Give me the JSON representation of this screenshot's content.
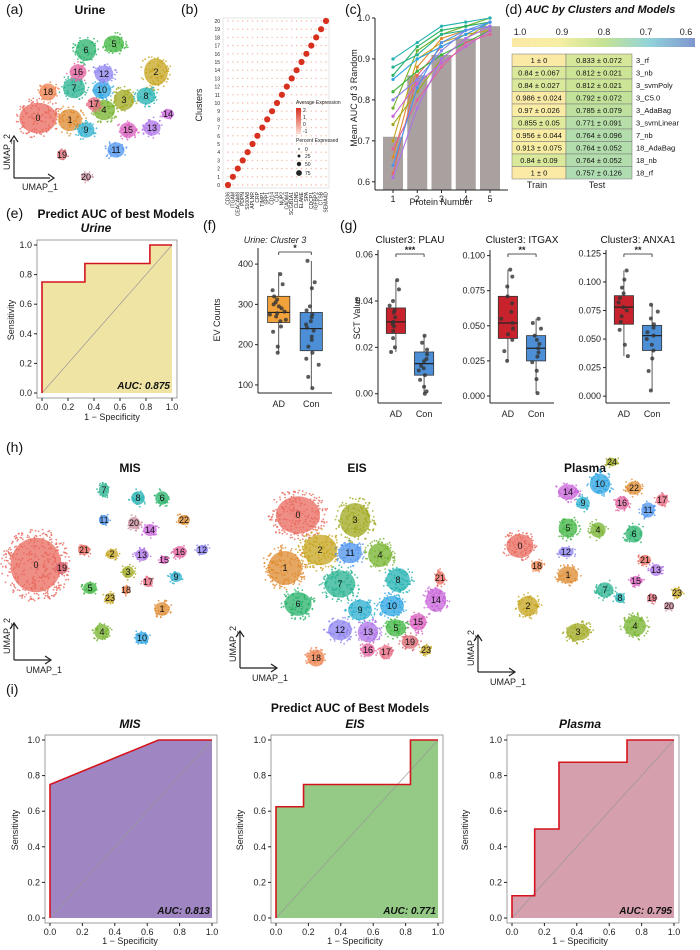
{
  "panels": {
    "a": {
      "label": "(a)",
      "title": "Urine",
      "xlab": "UMAP_1",
      "ylab": "UMAP_2",
      "clusters": [
        {
          "id": "0",
          "color": "#e8685c"
        },
        {
          "id": "1",
          "color": "#de8a2d"
        },
        {
          "id": "2",
          "color": "#c5a41c"
        },
        {
          "id": "3",
          "color": "#9fa81d"
        },
        {
          "id": "4",
          "color": "#74b12b"
        },
        {
          "id": "5",
          "color": "#3cb43d"
        },
        {
          "id": "6",
          "color": "#27b169"
        },
        {
          "id": "7",
          "color": "#25b28f"
        },
        {
          "id": "8",
          "color": "#22b2b0"
        },
        {
          "id": "9",
          "color": "#28aecd"
        },
        {
          "id": "10",
          "color": "#2aa4e3"
        },
        {
          "id": "11",
          "color": "#4d93ef"
        },
        {
          "id": "12",
          "color": "#8c82f0"
        },
        {
          "id": "13",
          "color": "#ad72e8"
        },
        {
          "id": "14",
          "color": "#c762d8"
        },
        {
          "id": "15",
          "color": "#d95bbd"
        },
        {
          "id": "16",
          "color": "#e3619f"
        },
        {
          "id": "17",
          "color": "#e86a82"
        },
        {
          "id": "18",
          "color": "#ef7f4a"
        },
        {
          "id": "19",
          "color": "#d86570"
        },
        {
          "id": "20",
          "color": "#c98b9b"
        }
      ]
    },
    "b": {
      "label": "(b)",
      "ylab": "Clusters",
      "cluster_ticks": [
        "0",
        "1",
        "2",
        "3",
        "4",
        "5",
        "6",
        "7",
        "8",
        "9",
        "10",
        "11",
        "12",
        "13",
        "14",
        "15",
        "16",
        "17",
        "18",
        "19",
        "20"
      ],
      "genes": [
        "CD36",
        "ITGAM",
        "CEACAM8",
        "PDPN",
        "S100A8",
        "APLNR",
        "CRP",
        "TIMP1",
        "SPP1",
        "CD14",
        "CD4",
        "NUP2",
        "CADM4",
        "SCGB1A1",
        "CLDN5",
        "ELANE",
        "SPA",
        "CDCP1",
        "IGFBP2",
        "CTSB",
        "SEMA4D"
      ],
      "legend1_title": "Average Expression",
      "legend1_ticks": [
        "2",
        "1",
        "0",
        "-1"
      ],
      "legend2_title": "Percent Expressed",
      "legend2_ticks": [
        "0",
        "25",
        "50",
        "75"
      ]
    },
    "c": {
      "label": "(c)",
      "ylab": "Mean AUC of 3 Random",
      "xlab": "Protein Number"
    },
    "d": {
      "label": "(d)",
      "title": "AUC by Clusters and Models",
      "scale_ticks": [
        "1.0",
        "0.9",
        "0.8",
        "0.7",
        "0.6"
      ],
      "col_train": "Train",
      "col_test": "Test",
      "rows": [
        {
          "train": "1 ± 0",
          "test": "0.833 ± 0.072",
          "model": "3_rf"
        },
        {
          "train": "0.84 ± 0.067",
          "test": "0.812 ± 0.021",
          "model": "3_nb"
        },
        {
          "train": "0.84 ± 0.027",
          "test": "0.812 ± 0.021",
          "model": "3_svmPoly"
        },
        {
          "train": "0.986 ± 0.024",
          "test": "0.792 ± 0.072",
          "model": "3_C5.0"
        },
        {
          "train": "0.97 ± 0.026",
          "test": "0.785 ± 0.079",
          "model": "3_AdaBag"
        },
        {
          "train": "0.855 ± 0.05",
          "test": "0.771 ± 0.091",
          "model": "3_svmLinear"
        },
        {
          "train": "0.956 ± 0.044",
          "test": "0.764 ± 0.096",
          "model": "7_nb"
        },
        {
          "train": "0.913 ± 0.075",
          "test": "0.764 ± 0.052",
          "model": "18_AdaBag"
        },
        {
          "train": "0.84 ± 0.09",
          "test": "0.764 ± 0.052",
          "model": "18_nb"
        },
        {
          "train": "1 ± 0",
          "test": "0.757 ± 0.126",
          "model": "18_rf"
        }
      ]
    },
    "e": {
      "label": "(e)",
      "title": "Predict AUC of best Models",
      "subtitle": "Urine",
      "auc": "AUC: 0.875",
      "xlab": "1 − Specificity",
      "ylab": "Sensitivity"
    },
    "f": {
      "label": "(f)",
      "title": "Urine: Cluster 3",
      "ylab": "EV Counts",
      "sig": "*"
    },
    "g": {
      "label": "(g)",
      "ylab": "SCT Value",
      "plots": [
        {
          "title": "Cluster3: PLAU",
          "sig": "***"
        },
        {
          "title": "Cluster3: ITGAX",
          "sig": "**"
        },
        {
          "title": "Cluster3: ANXA1",
          "sig": "**"
        }
      ]
    },
    "h": {
      "label": "(h)",
      "xlab": "UMAP_1",
      "ylab": "UMAP_2",
      "plots": [
        {
          "title": "MIS"
        },
        {
          "title": "EIS"
        },
        {
          "title": "Plasma"
        }
      ]
    },
    "i": {
      "label": "(i)",
      "title": "Predict AUC of Best Models",
      "plots": [
        {
          "title": "MIS",
          "auc": "AUC: 0.813"
        },
        {
          "title": "EIS",
          "auc": "AUC: 0.771"
        },
        {
          "title": "Plasma",
          "auc": "AUC: 0.795"
        }
      ],
      "xlab": "1 − Specificity",
      "ylab": "Sensitivity"
    }
  },
  "chart_data": [
    {
      "type": "scatter",
      "id": "b",
      "title": "",
      "xlabel": "",
      "ylabel": "Clusters",
      "x": [
        "CD36",
        "ITGAM",
        "CEACAM8",
        "PDPN",
        "S100A8",
        "APLNR",
        "CRP",
        "TIMP1",
        "SPP1",
        "CD14",
        "CD4",
        "NUP2",
        "CADM4",
        "SCGB1A1",
        "CLDN5",
        "ELANE",
        "SPA",
        "CDCP1",
        "IGFBP2",
        "CTSB",
        "SEMA4D"
      ],
      "y": [
        "0",
        "1",
        "2",
        "3",
        "4",
        "5",
        "6",
        "7",
        "8",
        "9",
        "10",
        "11",
        "12",
        "13",
        "14",
        "15",
        "16",
        "17",
        "18",
        "19",
        "20"
      ],
      "highlight": "diagonal (each cluster's marker gene)"
    },
    {
      "type": "bar",
      "id": "c",
      "xlabel": "Protein Number",
      "ylabel": "Mean AUC of 3 Random",
      "categories": [
        "1",
        "2",
        "3",
        "4",
        "5"
      ],
      "values": [
        0.71,
        0.86,
        0.91,
        0.95,
        0.98
      ],
      "ylim": [
        0.58,
        1.0
      ],
      "yticks": [
        0.6,
        0.7,
        0.8,
        0.9,
        1.0
      ],
      "series": [
        {
          "name": "s1",
          "color": "#e8685c",
          "values": [
            0.62,
            0.86,
            0.93,
            0.96,
            0.99
          ]
        },
        {
          "name": "s2",
          "color": "#de8a2d",
          "values": [
            0.66,
            0.88,
            0.95,
            0.97,
            0.98
          ]
        },
        {
          "name": "s3",
          "color": "#c5a41c",
          "values": [
            0.7,
            0.9,
            0.94,
            0.96,
            0.97
          ]
        },
        {
          "name": "s4",
          "color": "#9fa81d",
          "values": [
            0.74,
            0.82,
            0.9,
            0.95,
            0.99
          ]
        },
        {
          "name": "s5",
          "color": "#74b12b",
          "values": [
            0.78,
            0.92,
            0.96,
            0.98,
            1.0
          ]
        },
        {
          "name": "s6",
          "color": "#3cb43d",
          "values": [
            0.82,
            0.87,
            0.91,
            0.94,
            0.97
          ]
        },
        {
          "name": "s7",
          "color": "#27b169",
          "values": [
            0.86,
            0.93,
            0.97,
            0.98,
            0.99
          ]
        },
        {
          "name": "s8",
          "color": "#25b28f",
          "values": [
            0.88,
            0.91,
            0.96,
            0.97,
            0.98
          ]
        },
        {
          "name": "s9",
          "color": "#22b2b0",
          "values": [
            0.9,
            0.94,
            0.98,
            0.99,
            1.0
          ]
        },
        {
          "name": "s10",
          "color": "#2aa4e3",
          "values": [
            0.85,
            0.9,
            0.93,
            0.96,
            0.99
          ]
        },
        {
          "name": "s11",
          "color": "#8c82f0",
          "values": [
            0.8,
            0.85,
            0.92,
            0.97,
            0.98
          ]
        },
        {
          "name": "s12",
          "color": "#c762d8",
          "values": [
            0.76,
            0.84,
            0.89,
            0.93,
            0.97
          ]
        },
        {
          "name": "s13",
          "color": "#e3619f",
          "values": [
            0.68,
            0.8,
            0.88,
            0.94,
            0.96
          ]
        },
        {
          "name": "s14",
          "color": "#4d93ef",
          "values": [
            0.64,
            0.83,
            0.94,
            0.97,
            0.99
          ]
        },
        {
          "name": "s15",
          "color": "#ad72e8",
          "values": [
            0.61,
            0.78,
            0.9,
            0.95,
            0.98
          ]
        }
      ]
    },
    {
      "type": "line",
      "id": "e",
      "title": "Predict AUC of best Models",
      "xlabel": "1 − Specificity",
      "ylabel": "Sensitivity",
      "x": [
        0,
        0,
        0.33,
        0.33,
        0.83,
        0.83,
        1
      ],
      "y": [
        0,
        0.75,
        0.75,
        0.875,
        0.875,
        1,
        1
      ],
      "xlim": [
        0,
        1
      ],
      "ylim": [
        0,
        1
      ],
      "ticks": [
        0.0,
        0.2,
        0.4,
        0.6,
        0.8,
        1.0
      ],
      "fill": "#efe39f",
      "auc": 0.875
    },
    {
      "type": "box",
      "id": "f",
      "title": "Urine: Cluster 3",
      "ylabel": "EV Counts",
      "categories": [
        "AD",
        "Con"
      ],
      "ylim": [
        80,
        440
      ],
      "yticks": [
        100,
        200,
        300,
        400
      ],
      "boxes": [
        {
          "name": "AD",
          "color": "#f2a23a",
          "min": 180,
          "q1": 255,
          "median": 280,
          "q3": 320,
          "max": 380,
          "points": [
            180,
            195,
            232,
            245,
            258,
            262,
            270,
            275,
            278,
            282,
            290,
            295,
            300,
            305,
            312,
            320,
            335,
            350,
            375
          ]
        },
        {
          "name": "Con",
          "color": "#4c8fd6",
          "min": 92,
          "q1": 185,
          "median": 240,
          "q3": 280,
          "max": 408,
          "points": [
            92,
            120,
            150,
            165,
            180,
            195,
            212,
            220,
            235,
            242,
            250,
            258,
            268,
            275,
            285,
            295,
            340,
            355,
            408
          ]
        }
      ]
    },
    {
      "type": "box",
      "id": "g1",
      "title": "Cluster3: PLAU",
      "ylabel": "SCT Value",
      "categories": [
        "AD",
        "Con"
      ],
      "ylim": [
        -0.004,
        0.062
      ],
      "yticks": [
        0.0,
        0.02,
        0.04,
        0.06
      ],
      "boxes": [
        {
          "name": "AD",
          "color": "#c8232c",
          "min": 0.018,
          "q1": 0.026,
          "median": 0.031,
          "q3": 0.037,
          "max": 0.049,
          "points": [
            0.018,
            0.02,
            0.024,
            0.027,
            0.029,
            0.03,
            0.031,
            0.033,
            0.035,
            0.036,
            0.038,
            0.04,
            0.045,
            0.049
          ]
        },
        {
          "name": "Con",
          "color": "#4c8fd6",
          "min": 0.0,
          "q1": 0.008,
          "median": 0.013,
          "q3": 0.018,
          "max": 0.025,
          "points": [
            0.0,
            0.001,
            0.003,
            0.006,
            0.008,
            0.01,
            0.011,
            0.012,
            0.014,
            0.015,
            0.017,
            0.019,
            0.022,
            0.025
          ]
        }
      ]
    },
    {
      "type": "box",
      "id": "g2",
      "title": "Cluster3: ITGAX",
      "ylabel": "",
      "categories": [
        "AD",
        "Con"
      ],
      "ylim": [
        -0.005,
        0.104
      ],
      "yticks": [
        0.0,
        0.025,
        0.05,
        0.075,
        0.1
      ],
      "boxes": [
        {
          "name": "AD",
          "color": "#c8232c",
          "min": 0.025,
          "q1": 0.041,
          "median": 0.052,
          "q3": 0.071,
          "max": 0.09,
          "points": [
            0.025,
            0.032,
            0.04,
            0.044,
            0.048,
            0.052,
            0.055,
            0.06,
            0.066,
            0.071,
            0.078,
            0.085,
            0.09
          ]
        },
        {
          "name": "Con",
          "color": "#4c8fd6",
          "min": 0.002,
          "q1": 0.025,
          "median": 0.034,
          "q3": 0.043,
          "max": 0.055,
          "points": [
            0.002,
            0.012,
            0.018,
            0.024,
            0.028,
            0.031,
            0.034,
            0.037,
            0.04,
            0.043,
            0.048,
            0.052,
            0.055
          ]
        }
      ]
    },
    {
      "type": "box",
      "id": "g3",
      "title": "Cluster3: ANXA1",
      "ylabel": "",
      "categories": [
        "AD",
        "Con"
      ],
      "ylim": [
        -0.006,
        0.128
      ],
      "yticks": [
        0.0,
        0.025,
        0.05,
        0.075,
        0.1,
        0.125
      ],
      "boxes": [
        {
          "name": "AD",
          "color": "#c8232c",
          "min": 0.035,
          "q1": 0.063,
          "median": 0.078,
          "q3": 0.088,
          "max": 0.11,
          "points": [
            0.035,
            0.045,
            0.058,
            0.065,
            0.07,
            0.075,
            0.078,
            0.082,
            0.086,
            0.09,
            0.095,
            0.102,
            0.11
          ]
        },
        {
          "name": "Con",
          "color": "#4c8fd6",
          "min": 0.005,
          "q1": 0.04,
          "median": 0.053,
          "q3": 0.062,
          "max": 0.08,
          "points": [
            0.005,
            0.022,
            0.033,
            0.04,
            0.045,
            0.05,
            0.053,
            0.056,
            0.06,
            0.063,
            0.068,
            0.074,
            0.08
          ]
        }
      ]
    },
    {
      "type": "line",
      "id": "i1",
      "title": "MIS",
      "xlabel": "1 − Specificity",
      "ylabel": "Sensitivity",
      "x": [
        0,
        0,
        0.67,
        1
      ],
      "y": [
        0,
        0.75,
        1,
        1
      ],
      "xlim": [
        0,
        1
      ],
      "ylim": [
        0,
        1
      ],
      "ticks": [
        0.0,
        0.2,
        0.4,
        0.6,
        0.8,
        1.0
      ],
      "fill": "#9a80bf",
      "auc": 0.813
    },
    {
      "type": "line",
      "id": "i2",
      "title": "EIS",
      "xlabel": "1 − Specificity",
      "ylabel": "Sensitivity",
      "x": [
        0,
        0,
        0.17,
        0.17,
        0.83,
        0.83,
        1
      ],
      "y": [
        0,
        0.625,
        0.625,
        0.75,
        0.75,
        1,
        1
      ],
      "xlim": [
        0,
        1
      ],
      "ylim": [
        0,
        1
      ],
      "ticks": [
        0.0,
        0.2,
        0.4,
        0.6,
        0.8,
        1.0
      ],
      "fill": "#8ec77e",
      "auc": 0.771
    },
    {
      "type": "line",
      "id": "i3",
      "title": "Plasma",
      "xlabel": "1 − Specificity",
      "ylabel": "Sensitivity",
      "x": [
        0,
        0,
        0.14,
        0.14,
        0.29,
        0.29,
        0.71,
        0.71,
        1
      ],
      "y": [
        0,
        0.125,
        0.125,
        0.5,
        0.5,
        0.875,
        0.875,
        1,
        1
      ],
      "xlim": [
        0,
        1
      ],
      "ylim": [
        0,
        1
      ],
      "ticks": [
        0.0,
        0.2,
        0.4,
        0.6,
        0.8,
        1.0
      ],
      "fill": "#d49aa9",
      "auc": 0.795
    }
  ]
}
